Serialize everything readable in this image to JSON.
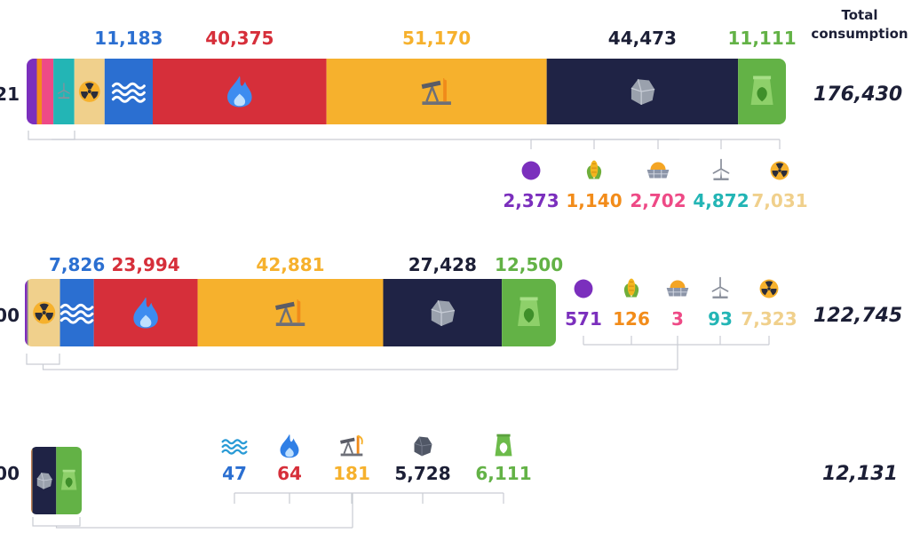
{
  "header": {
    "total_line1": "Total",
    "total_line2": "consumption"
  },
  "colors": {
    "other": "#7b2fbd",
    "biofuels": "#f28c1a",
    "solar": "#ee4a86",
    "wind": "#23b5b5",
    "nuclear": "#f0d08c",
    "hydro": "#2b6fd1",
    "gas": "#d62f3a",
    "oil": "#f6b12d",
    "coal": "#1f2345",
    "traditional": "#63b246",
    "total": "#1c1f36"
  },
  "chart_data": [
    {
      "type": "bar",
      "orientation": "horizontal-stacked",
      "row_label_fragment": "21",
      "total": "176,430",
      "segments": [
        {
          "source": "other",
          "value": 2373,
          "label": "2,373"
        },
        {
          "source": "biofuels",
          "value": 1140,
          "label": "1,140"
        },
        {
          "source": "solar",
          "value": 2702,
          "label": "2,702"
        },
        {
          "source": "wind",
          "value": 4872,
          "label": "4,872"
        },
        {
          "source": "nuclear",
          "value": 7031,
          "label": "7,031"
        },
        {
          "source": "hydro",
          "value": 11183,
          "label": "11,183"
        },
        {
          "source": "gas",
          "value": 40375,
          "label": "40,375"
        },
        {
          "source": "oil",
          "value": 51170,
          "label": "51,170"
        },
        {
          "source": "coal",
          "value": 44473,
          "label": "44,473"
        },
        {
          "source": "traditional",
          "value": 11111,
          "label": "11,111"
        }
      ],
      "above": [
        "hydro",
        "gas",
        "oil",
        "coal",
        "traditional"
      ],
      "callout": [
        "other",
        "biofuels",
        "solar",
        "wind",
        "nuclear"
      ]
    },
    {
      "type": "bar",
      "orientation": "horizontal-stacked",
      "row_label_fragment": "00",
      "total": "122,745",
      "segments": [
        {
          "source": "other",
          "value": 571,
          "label": "571"
        },
        {
          "source": "biofuels",
          "value": 126,
          "label": "126"
        },
        {
          "source": "solar",
          "value": 3,
          "label": "3"
        },
        {
          "source": "wind",
          "value": 93,
          "label": "93"
        },
        {
          "source": "nuclear",
          "value": 7323,
          "label": "7,323"
        },
        {
          "source": "hydro",
          "value": 7826,
          "label": "7,826"
        },
        {
          "source": "gas",
          "value": 23994,
          "label": "23,994"
        },
        {
          "source": "oil",
          "value": 42881,
          "label": "42,881"
        },
        {
          "source": "coal",
          "value": 27428,
          "label": "27,428"
        },
        {
          "source": "traditional",
          "value": 12500,
          "label": "12,500"
        }
      ],
      "above": [
        "hydro",
        "gas",
        "oil",
        "coal",
        "traditional"
      ],
      "callout": [
        "other",
        "biofuels",
        "solar",
        "wind",
        "nuclear"
      ]
    },
    {
      "type": "bar",
      "orientation": "horizontal-stacked",
      "row_label_fragment": "00",
      "total": "12,131",
      "segments": [
        {
          "source": "hydro",
          "value": 47,
          "label": "47"
        },
        {
          "source": "gas",
          "value": 64,
          "label": "64"
        },
        {
          "source": "oil",
          "value": 181,
          "label": "181"
        },
        {
          "source": "coal",
          "value": 5728,
          "label": "5,728"
        },
        {
          "source": "traditional",
          "value": 6111,
          "label": "6,111"
        }
      ],
      "above": [],
      "callout": [
        "hydro",
        "gas",
        "oil",
        "coal",
        "traditional"
      ]
    }
  ]
}
